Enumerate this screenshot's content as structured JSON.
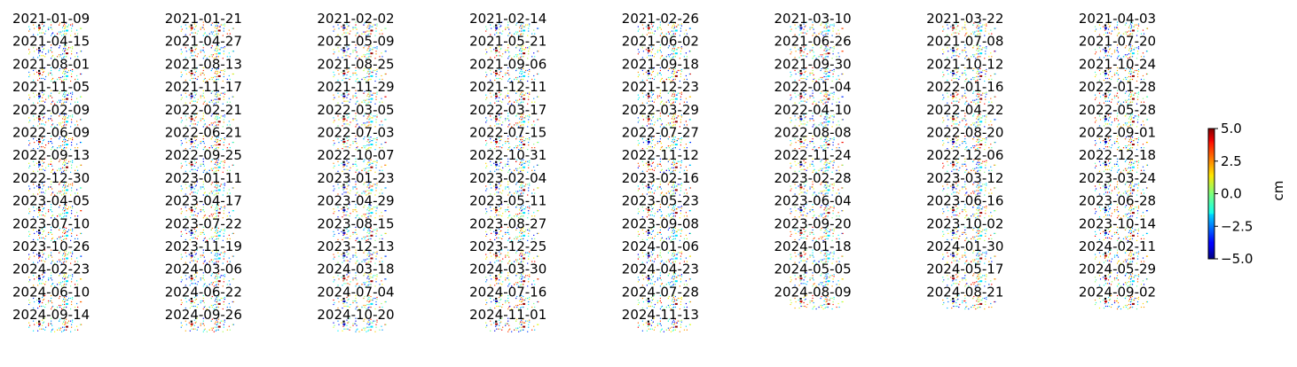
{
  "chart_data": {
    "type": "heatmap",
    "subtype": "small-multiples displacement maps",
    "dates": [
      "2021-01-09",
      "2021-01-21",
      "2021-02-02",
      "2021-02-14",
      "2021-02-26",
      "2021-03-10",
      "2021-03-22",
      "2021-04-03",
      "2021-04-15",
      "2021-04-27",
      "2021-05-09",
      "2021-05-21",
      "2021-06-02",
      "2021-06-26",
      "2021-07-08",
      "2021-07-20",
      "2021-08-01",
      "2021-08-13",
      "2021-08-25",
      "2021-09-06",
      "2021-09-18",
      "2021-09-30",
      "2021-10-12",
      "2021-10-24",
      "2021-11-05",
      "2021-11-17",
      "2021-11-29",
      "2021-12-11",
      "2021-12-23",
      "2022-01-04",
      "2022-01-16",
      "2022-01-28",
      "2022-02-09",
      "2022-02-21",
      "2022-03-05",
      "2022-03-17",
      "2022-03-29",
      "2022-04-10",
      "2022-04-22",
      "2022-05-28",
      "2022-06-09",
      "2022-06-21",
      "2022-07-03",
      "2022-07-15",
      "2022-07-27",
      "2022-08-08",
      "2022-08-20",
      "2022-09-01",
      "2022-09-13",
      "2022-09-25",
      "2022-10-07",
      "2022-10-31",
      "2022-11-12",
      "2022-11-24",
      "2022-12-06",
      "2022-12-18",
      "2022-12-30",
      "2023-01-11",
      "2023-01-23",
      "2023-02-04",
      "2023-02-16",
      "2023-02-28",
      "2023-03-12",
      "2023-03-24",
      "2023-04-05",
      "2023-04-17",
      "2023-04-29",
      "2023-05-11",
      "2023-05-23",
      "2023-06-04",
      "2023-06-16",
      "2023-06-28",
      "2023-07-10",
      "2023-07-22",
      "2023-08-15",
      "2023-08-27",
      "2023-09-08",
      "2023-09-20",
      "2023-10-02",
      "2023-10-14",
      "2023-10-26",
      "2023-11-19",
      "2023-12-13",
      "2023-12-25",
      "2024-01-06",
      "2024-01-18",
      "2024-01-30",
      "2024-02-11",
      "2024-02-23",
      "2024-03-06",
      "2024-03-18",
      "2024-03-30",
      "2024-04-23",
      "2024-05-05",
      "2024-05-17",
      "2024-05-29",
      "2024-06-10",
      "2024-06-22",
      "2024-07-04",
      "2024-07-16",
      "2024-07-28",
      "2024-08-09",
      "2024-08-21",
      "2024-09-02",
      "2024-09-14",
      "2024-09-26",
      "2024-10-20",
      "2024-11-01",
      "2024-11-13"
    ],
    "grid_columns": 8,
    "colorbar": {
      "label": "cm",
      "colormap": "jet",
      "range": [
        -5.0,
        5.0
      ],
      "ticks": [
        "5.0",
        "2.5",
        "0.0",
        "−2.5",
        "−5.0"
      ],
      "tick_values": [
        5.0,
        2.5,
        0.0,
        -2.5,
        -5.0
      ]
    },
    "axes_visible": false
  }
}
